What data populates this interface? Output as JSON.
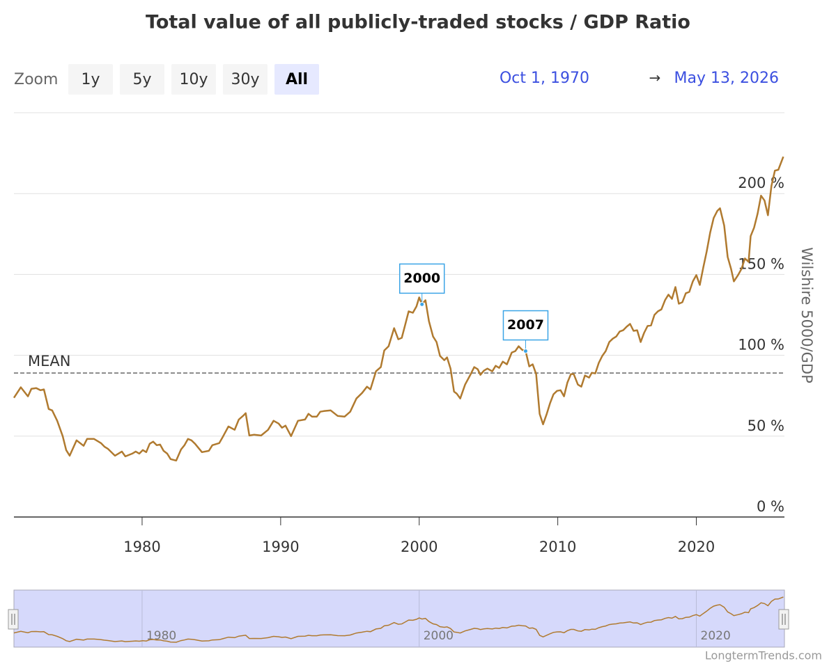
{
  "chart_data": {
    "type": "line",
    "title": "Total value of all publicly-traded stocks / GDP Ratio",
    "zoom": {
      "label": "Zoom",
      "buttons": [
        "1y",
        "5y",
        "10y",
        "30y",
        "All"
      ],
      "selected": 4
    },
    "range": {
      "from": "Oct 1, 1970",
      "arrow": "→",
      "to": "May 13, 2026"
    },
    "y_axis_label": "Wilshire 5000/GDP",
    "credit": "LongtermTrends.com",
    "color": "#b07a2f",
    "xlim": [
      1970.75,
      2026.36
    ],
    "xticks": [
      1980,
      1990,
      2000,
      2010,
      2020
    ],
    "ylim": [
      0,
      250
    ],
    "yticks": [
      {
        "value": 0,
        "label": "0 %"
      },
      {
        "value": 50,
        "label": "50 %"
      },
      {
        "value": 100,
        "label": "100 %"
      },
      {
        "value": 150,
        "label": "150 %"
      },
      {
        "value": 200,
        "label": "200 %"
      }
    ],
    "grid": true,
    "mean": {
      "label": "MEAN",
      "value": 89
    },
    "annotations": [
      {
        "label": "2000",
        "x": 2000.2,
        "y": 131.5
      },
      {
        "label": "2007",
        "x": 2007.68,
        "y": 102.6
      }
    ],
    "navigator": {
      "xticks": [
        1980,
        2000,
        2020
      ]
    },
    "x": [
      1970.75,
      1971.25,
      1971.76,
      1972.01,
      1972.36,
      1972.66,
      1972.91,
      1973.26,
      1973.51,
      1973.87,
      1974.27,
      1974.52,
      1974.77,
      1975.27,
      1975.78,
      1976.03,
      1976.53,
      1977.03,
      1977.28,
      1977.53,
      1978.04,
      1978.54,
      1978.79,
      1979.29,
      1979.54,
      1979.8,
      1980.05,
      1980.3,
      1980.55,
      1980.8,
      1981.05,
      1981.3,
      1981.55,
      1981.81,
      1982.06,
      1982.46,
      1982.81,
      1983.06,
      1983.31,
      1983.56,
      1983.82,
      1984.32,
      1984.82,
      1985.07,
      1985.57,
      1985.83,
      1986.23,
      1986.68,
      1986.98,
      1987.33,
      1987.48,
      1987.74,
      1988.09,
      1988.59,
      1989.09,
      1989.49,
      1989.85,
      1990.1,
      1990.35,
      1990.75,
      1991.25,
      1991.76,
      1992.01,
      1992.26,
      1992.61,
      1992.86,
      1993.11,
      1993.61,
      1994.12,
      1994.62,
      1995.02,
      1995.47,
      1995.88,
      1996.23,
      1996.48,
      1996.88,
      1997.23,
      1997.48,
      1997.79,
      1998.19,
      1998.49,
      1998.74,
      1998.99,
      1999.24,
      1999.54,
      1999.8,
      2000.0,
      2000.2,
      2000.45,
      2000.7,
      2001.0,
      2001.25,
      2001.5,
      2001.81,
      2002.01,
      2002.26,
      2002.51,
      2002.71,
      2002.96,
      2003.31,
      2003.72,
      2003.97,
      2004.22,
      2004.42,
      2004.67,
      2004.92,
      2005.27,
      2005.52,
      2005.77,
      2006.03,
      2006.33,
      2006.68,
      2006.93,
      2007.18,
      2007.43,
      2007.68,
      2007.94,
      2008.19,
      2008.44,
      2008.69,
      2008.94,
      2009.19,
      2009.44,
      2009.69,
      2009.95,
      2010.2,
      2010.45,
      2010.7,
      2010.95,
      2011.15,
      2011.45,
      2011.7,
      2011.96,
      2012.26,
      2012.46,
      2012.71,
      2012.96,
      2013.21,
      2013.46,
      2013.72,
      2013.97,
      2014.22,
      2014.47,
      2014.72,
      2014.97,
      2015.22,
      2015.47,
      2015.73,
      2015.98,
      2016.23,
      2016.48,
      2016.73,
      2016.98,
      2017.23,
      2017.48,
      2017.74,
      2017.99,
      2018.24,
      2018.49,
      2018.74,
      2018.99,
      2019.24,
      2019.49,
      2019.75,
      2020.0,
      2020.25,
      2020.5,
      2020.75,
      2021.0,
      2021.25,
      2021.51,
      2021.71,
      2022.01,
      2022.26,
      2022.51,
      2022.71,
      2023.01,
      2023.26,
      2023.51,
      2023.77,
      2023.92,
      2024.17,
      2024.42,
      2024.67,
      2024.92,
      2025.17,
      2025.42,
      2025.67,
      2025.92,
      2026.28
    ],
    "values": [
      73.7,
      80.2,
      74.6,
      79.3,
      79.7,
      78.4,
      78.9,
      66.8,
      65.9,
      59.5,
      50.0,
      41.4,
      37.9,
      47.4,
      44.0,
      48.3,
      48.3,
      45.7,
      43.5,
      42.2,
      37.9,
      40.5,
      37.5,
      39.2,
      40.5,
      39.2,
      41.4,
      40.1,
      45.3,
      46.6,
      44.4,
      44.8,
      40.9,
      39.2,
      35.8,
      34.9,
      41.8,
      44.4,
      48.3,
      47.4,
      45.3,
      40.1,
      40.9,
      44.4,
      45.7,
      49.6,
      56.0,
      53.9,
      60.3,
      62.9,
      64.2,
      50.4,
      50.9,
      50.4,
      53.9,
      59.5,
      57.8,
      55.2,
      56.5,
      50.0,
      59.5,
      60.3,
      63.8,
      62.1,
      62.1,
      65.1,
      65.5,
      65.9,
      62.5,
      62.1,
      65.1,
      73.3,
      76.7,
      80.6,
      78.9,
      90.1,
      92.7,
      103.0,
      105.6,
      116.8,
      109.9,
      110.8,
      119.0,
      127.2,
      126.3,
      130.2,
      135.8,
      131.5,
      134.1,
      121.1,
      111.6,
      108.2,
      99.6,
      97.0,
      98.7,
      91.8,
      77.6,
      76.3,
      73.3,
      81.9,
      88.4,
      92.7,
      91.4,
      87.9,
      90.5,
      91.8,
      90.1,
      93.5,
      92.2,
      96.1,
      94.4,
      101.7,
      102.6,
      105.6,
      103.4,
      102.6,
      93.1,
      94.4,
      88.4,
      63.8,
      57.3,
      63.4,
      70.3,
      75.9,
      78.0,
      78.4,
      74.6,
      83.2,
      88.4,
      88.4,
      81.9,
      80.6,
      87.5,
      86.2,
      89.2,
      88.8,
      95.3,
      99.6,
      102.6,
      108.2,
      110.3,
      111.6,
      114.7,
      115.5,
      117.7,
      119.4,
      115.1,
      115.5,
      108.2,
      113.8,
      118.1,
      118.5,
      125.0,
      127.2,
      128.4,
      134.1,
      137.5,
      134.9,
      142.2,
      131.9,
      132.8,
      138.4,
      139.2,
      145.7,
      149.6,
      143.5,
      154.3,
      164.2,
      175.9,
      184.9,
      189.2,
      190.9,
      180.2,
      160.8,
      153.4,
      145.7,
      149.6,
      153.4,
      159.9,
      157.8,
      173.7,
      178.9,
      187.5,
      198.7,
      195.7,
      186.6,
      204.7,
      214.2,
      214.7,
      222.8
    ]
  }
}
